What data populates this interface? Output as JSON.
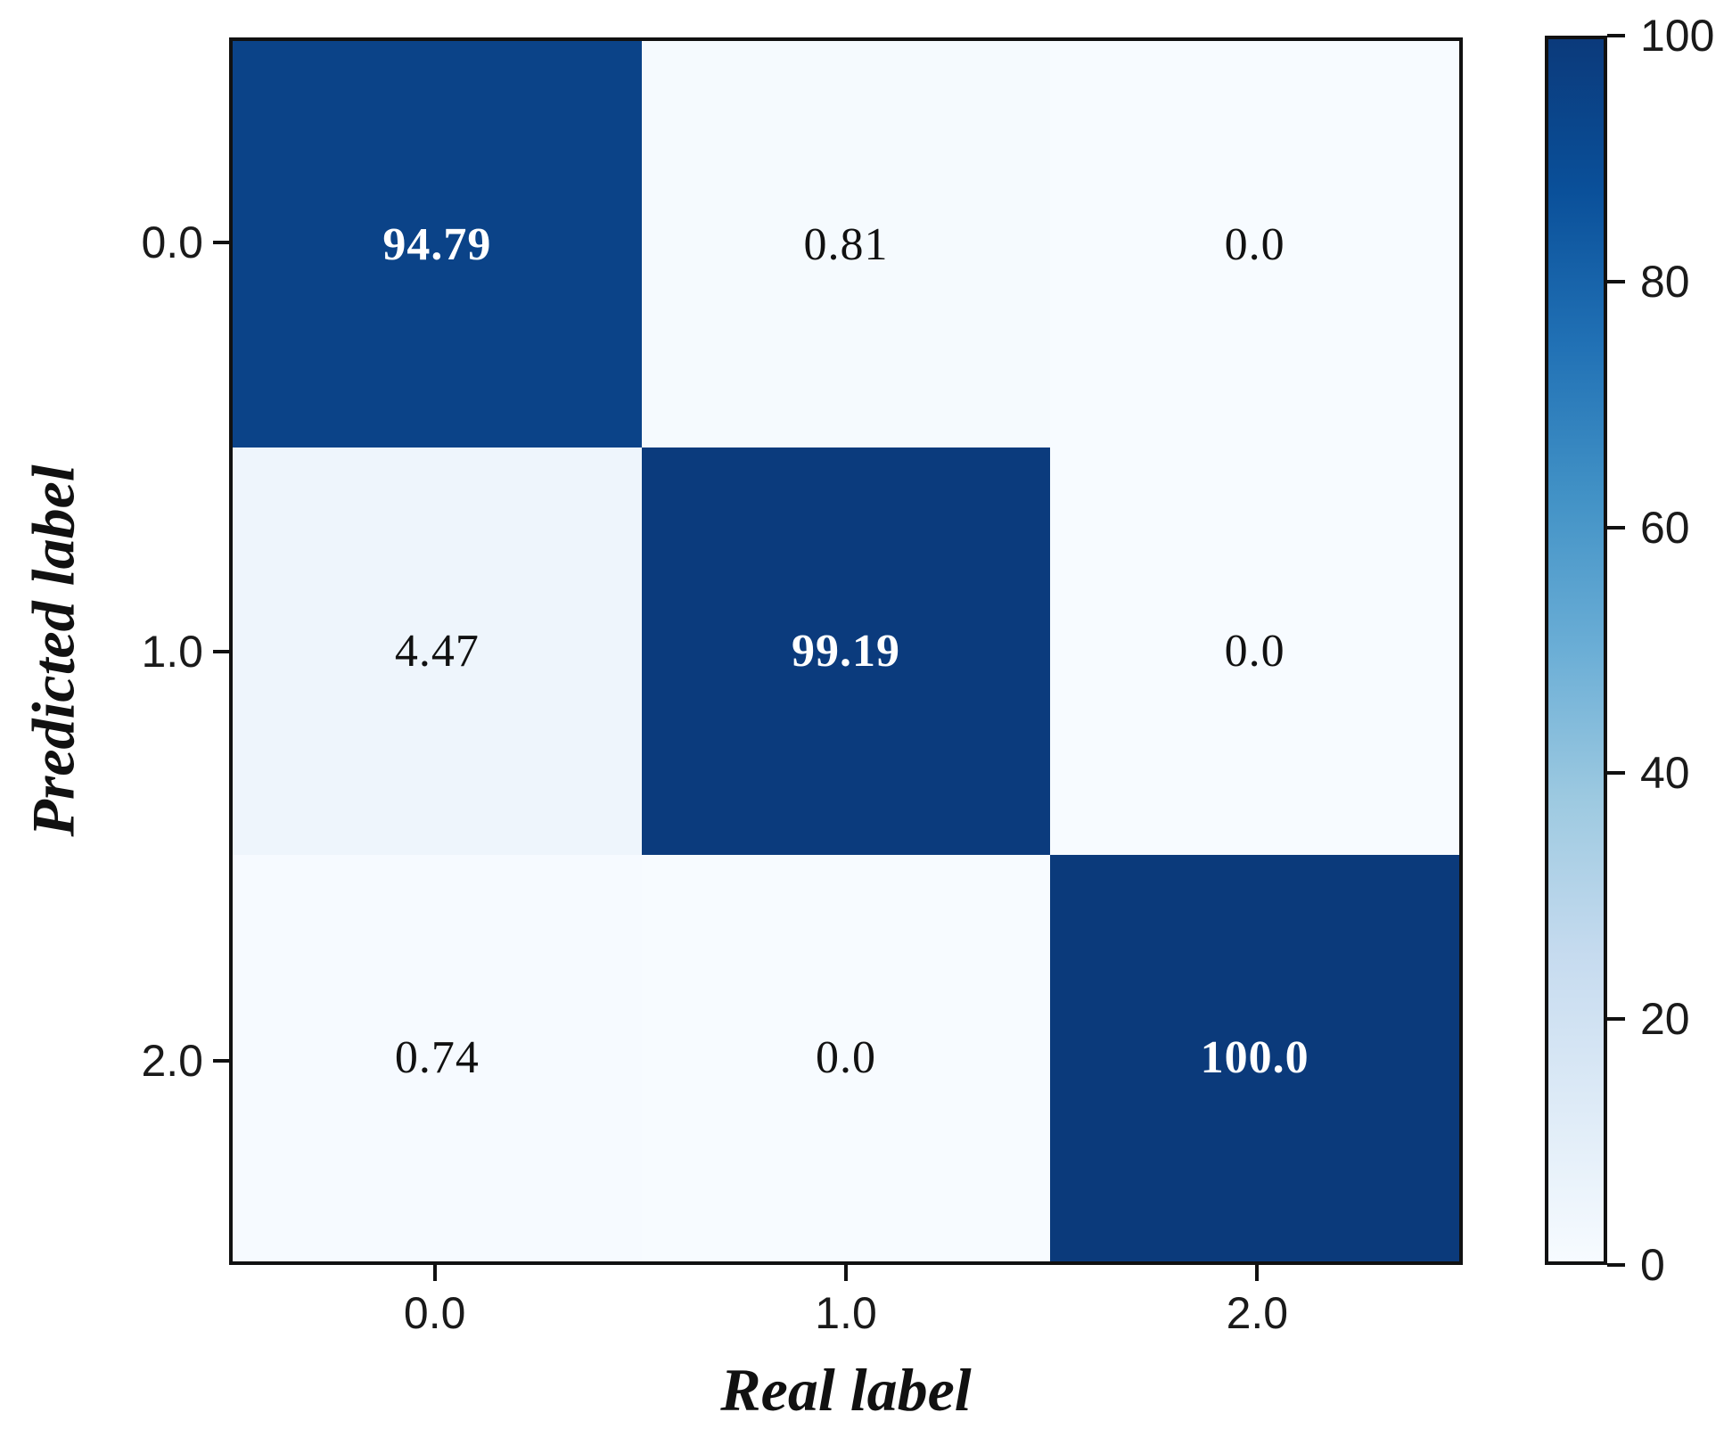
{
  "chart_data": {
    "type": "heatmap",
    "title": "",
    "xlabel": "Real label",
    "ylabel": "Predicted label",
    "x_tick_labels": [
      "0.0",
      "1.0",
      "2.0"
    ],
    "y_tick_labels": [
      "0.0",
      "1.0",
      "2.0"
    ],
    "matrix": [
      [
        94.79,
        0.81,
        0.0
      ],
      [
        4.47,
        99.19,
        0.0
      ],
      [
        0.74,
        0.0,
        100.0
      ]
    ],
    "cell_labels": [
      [
        "94.79",
        "0.81",
        "0.0"
      ],
      [
        "4.47",
        "99.19",
        "0.0"
      ],
      [
        "0.74",
        "0.0",
        "100.0"
      ]
    ],
    "value_range": [
      0,
      100
    ],
    "colormap_name": "Blues",
    "colormap_stops": [
      {
        "v": 0,
        "color": "#f7fbff"
      },
      {
        "v": 12.5,
        "color": "#deebf7"
      },
      {
        "v": 25,
        "color": "#c6dbef"
      },
      {
        "v": 37.5,
        "color": "#9ecae1"
      },
      {
        "v": 50,
        "color": "#6baed6"
      },
      {
        "v": 62.5,
        "color": "#4292c6"
      },
      {
        "v": 75,
        "color": "#2171b5"
      },
      {
        "v": 87.5,
        "color": "#0a509a"
      },
      {
        "v": 100,
        "color": "#0b3a7b"
      }
    ],
    "colorbar_ticks": [
      "100",
      "80",
      "60",
      "40",
      "20",
      "0"
    ],
    "text_color_threshold": 50,
    "text_color_high": "#ffffff",
    "text_color_low": "#111111",
    "grid": false,
    "legend": "none"
  }
}
